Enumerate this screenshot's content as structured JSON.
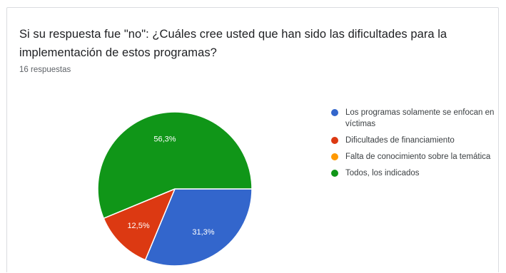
{
  "chart_data": {
    "type": "pie",
    "title": "Si su respuesta fue \"no\": ¿Cuáles cree usted que han sido las dificultades para la implementación de estos programas?",
    "subtitle": "16 respuestas",
    "legend_position": "right",
    "slices": [
      {
        "label": "Los programas solamente se enfocan en víctimas",
        "value": 31.3,
        "value_label": "31,3%",
        "color": "#3366cc"
      },
      {
        "label": "Dificultades de financiamiento",
        "value": 12.5,
        "value_label": "12,5%",
        "color": "#dc3912"
      },
      {
        "label": "Falta de conocimiento sobre la temática",
        "value": 0,
        "value_label": "",
        "color": "#ff9900"
      },
      {
        "label": "Todos, los indicados",
        "value": 56.3,
        "value_label": "56,3%",
        "color": "#109618"
      }
    ]
  }
}
